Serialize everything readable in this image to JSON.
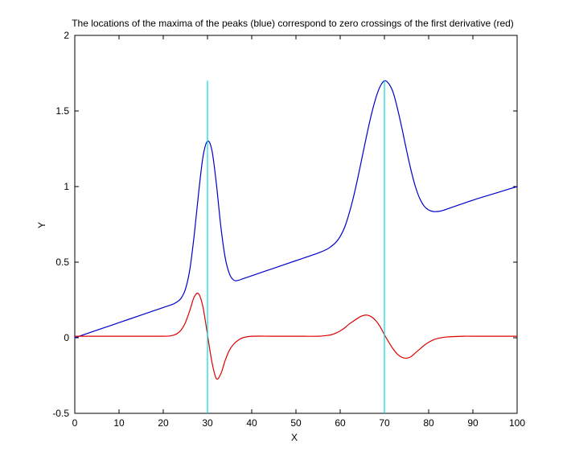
{
  "chart_data": {
    "type": "line",
    "title": "The locations of the maxima of the peaks (blue) correspond to zero crossings of the first derivative (red)",
    "xlabel": "X",
    "ylabel": "Y",
    "xlim": [
      0,
      100
    ],
    "ylim": [
      -0.5,
      2
    ],
    "xticks": [
      0,
      10,
      20,
      30,
      40,
      50,
      60,
      70,
      80,
      90,
      100
    ],
    "yticks": [
      -0.5,
      0,
      0.5,
      1,
      1.5,
      2
    ],
    "xtick_labels": [
      "0",
      "10",
      "20",
      "30",
      "40",
      "50",
      "60",
      "70",
      "80",
      "90",
      "100"
    ],
    "ytick_labels": [
      "-0.5",
      "0",
      "0.5",
      "1",
      "1.5",
      "2"
    ],
    "grid": false,
    "series": [
      {
        "color": "#0000cc",
        "x": [
          0,
          5,
          10,
          15,
          20,
          22,
          23,
          24,
          25,
          26,
          27,
          28,
          29,
          30,
          31,
          32,
          33,
          34,
          35,
          36,
          37,
          38,
          40,
          45,
          50,
          55,
          57,
          58,
          59,
          60,
          61,
          62,
          63,
          64,
          65,
          66,
          67,
          68,
          69,
          70,
          71,
          72,
          73,
          74,
          75,
          76,
          77,
          78,
          79,
          80,
          81,
          82,
          83,
          85,
          90,
          95,
          100
        ],
        "y": [
          0,
          0.05,
          0.1,
          0.15,
          0.2,
          0.22,
          0.235,
          0.26,
          0.32,
          0.45,
          0.68,
          0.96,
          1.2,
          1.3,
          1.24,
          1.02,
          0.74,
          0.53,
          0.42,
          0.38,
          0.38,
          0.39,
          0.41,
          0.46,
          0.51,
          0.56,
          0.585,
          0.605,
          0.63,
          0.67,
          0.73,
          0.82,
          0.93,
          1.06,
          1.2,
          1.34,
          1.47,
          1.58,
          1.66,
          1.7,
          1.68,
          1.62,
          1.51,
          1.38,
          1.24,
          1.11,
          1.0,
          0.92,
          0.87,
          0.845,
          0.835,
          0.835,
          0.84,
          0.86,
          0.91,
          0.955,
          1.0
        ]
      },
      {
        "color": "#dd0000",
        "x": [
          0,
          10,
          20,
          22,
          23,
          24,
          25,
          26,
          27,
          28,
          29,
          30,
          31,
          32,
          33,
          34,
          35,
          36,
          37,
          38,
          40,
          45,
          50,
          55,
          57,
          58,
          59,
          60,
          61,
          62,
          63,
          64,
          65,
          66,
          67,
          68,
          69,
          70,
          71,
          72,
          73,
          74,
          75,
          76,
          77,
          78,
          79,
          80,
          81,
          82,
          84,
          88,
          90,
          100
        ],
        "y": [
          0.01,
          0.01,
          0.01,
          0.015,
          0.025,
          0.05,
          0.1,
          0.18,
          0.27,
          0.29,
          0.2,
          0.02,
          -0.16,
          -0.27,
          -0.24,
          -0.15,
          -0.08,
          -0.04,
          -0.015,
          0.0,
          0.01,
          0.01,
          0.01,
          0.01,
          0.015,
          0.02,
          0.03,
          0.045,
          0.065,
          0.09,
          0.11,
          0.13,
          0.145,
          0.15,
          0.14,
          0.115,
          0.075,
          0.02,
          -0.03,
          -0.075,
          -0.11,
          -0.13,
          -0.135,
          -0.125,
          -0.1,
          -0.075,
          -0.05,
          -0.03,
          -0.015,
          -0.005,
          0.005,
          0.01,
          0.01,
          0.01
        ]
      }
    ],
    "vertical_lines": [
      {
        "color": "#00dddd",
        "x": 30,
        "y_range": [
          -0.5,
          1.7
        ]
      },
      {
        "color": "#00dddd",
        "x": 70,
        "y_range": [
          -0.5,
          1.7
        ]
      }
    ]
  }
}
